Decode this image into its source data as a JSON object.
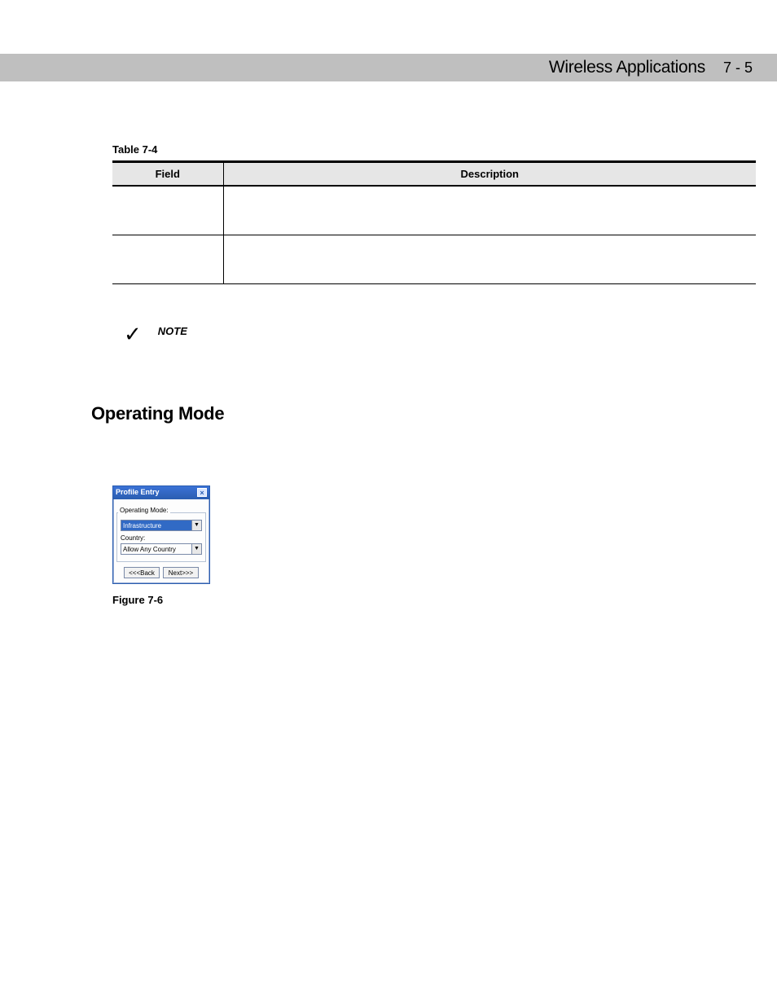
{
  "header": {
    "title": "Wireless Applications",
    "page": "7 - 5"
  },
  "table": {
    "caption": "Table 7-4",
    "columns": [
      "Field",
      "Description"
    ],
    "rows": [
      [
        "",
        ""
      ],
      [
        "",
        ""
      ]
    ]
  },
  "note": {
    "label": "NOTE"
  },
  "section": {
    "heading": "Operating Mode"
  },
  "dialog": {
    "title": "Profile Entry",
    "groupLabel": "Operating Mode:",
    "modeValue": "Infrastructure",
    "countryLabel": "Country:",
    "countryValue": "Allow Any Country",
    "backBtn": "<<<Back",
    "nextBtn": "Next>>>"
  },
  "figure": {
    "caption": "Figure 7-6"
  }
}
